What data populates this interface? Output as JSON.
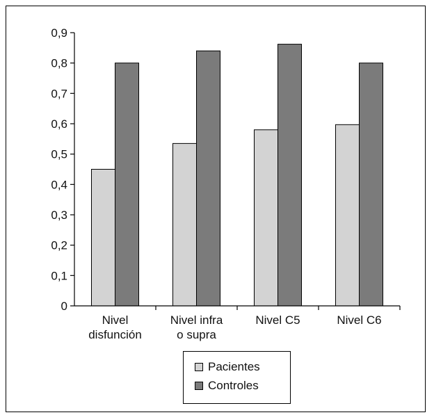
{
  "chart_data": {
    "type": "bar",
    "categories": [
      [
        "Nivel",
        "disfunción"
      ],
      [
        "Nivel infra",
        "o supra"
      ],
      [
        "Nivel C5"
      ],
      [
        "Nivel C6"
      ]
    ],
    "series": [
      {
        "name": "Pacientes",
        "values": [
          0.45,
          0.535,
          0.58,
          0.597
        ],
        "color": "#d3d3d3"
      },
      {
        "name": "Controles",
        "values": [
          0.8,
          0.84,
          0.862,
          0.8
        ],
        "color": "#7b7b7b"
      }
    ],
    "yticks": [
      "0",
      "0,1",
      "0,2",
      "0,3",
      "0,4",
      "0,5",
      "0,6",
      "0,7",
      "0,8",
      "0,9"
    ],
    "ylim": [
      0,
      0.9
    ],
    "grid": false,
    "legend_position": "bottom"
  }
}
